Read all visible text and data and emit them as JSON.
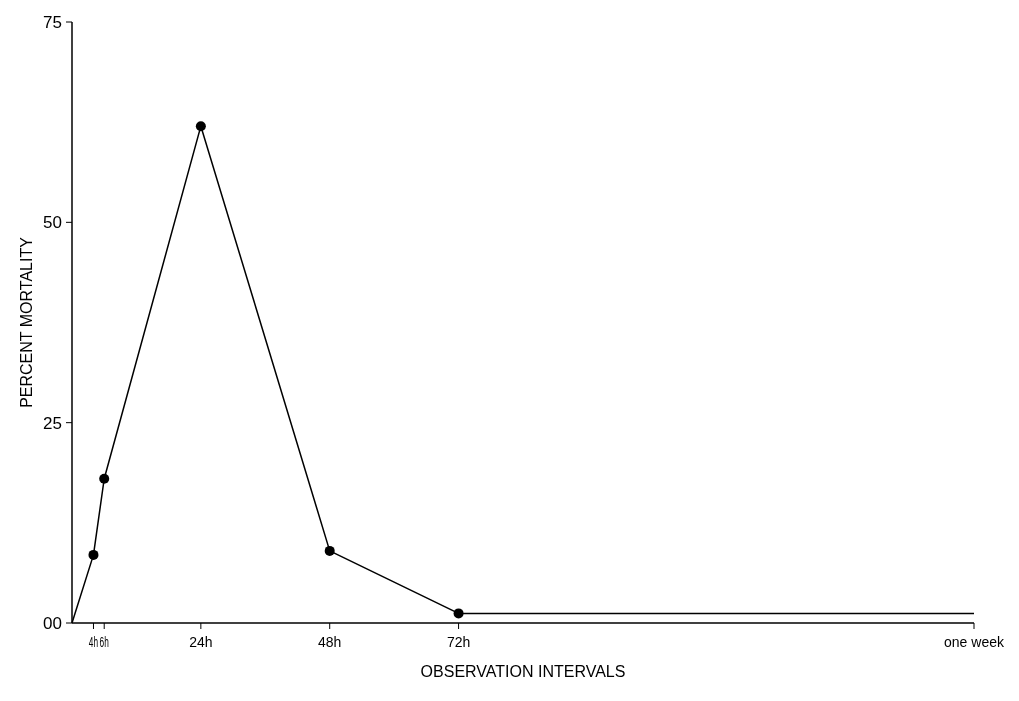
{
  "chart_data": {
    "type": "line",
    "xlabel": "OBSERVATION  INTERVALS",
    "ylabel": "PERCENT  MORTALITY",
    "xlim": [
      0,
      168
    ],
    "xticks": [
      {
        "value": 4,
        "label": "4h"
      },
      {
        "value": 6,
        "label": "6h"
      },
      {
        "value": 24,
        "label": "24h"
      },
      {
        "value": 48,
        "label": "48h"
      },
      {
        "value": 72,
        "label": "72h"
      },
      {
        "value": 168,
        "label": "one week"
      }
    ],
    "ylim": [
      0,
      75
    ],
    "yticks": [
      {
        "value": 0,
        "label": "00"
      },
      25,
      50,
      75
    ],
    "grid": false,
    "line_style": "solid",
    "series": [
      {
        "color": "#000000",
        "x": [
          0,
          4,
          6,
          24,
          48,
          72,
          168
        ],
        "values": [
          0,
          8.5,
          18,
          62,
          9,
          1.2,
          1.2
        ]
      },
      {
        "type": "scatter",
        "color": "#000000",
        "marker": "circle",
        "x": [
          4,
          6,
          24,
          48,
          72
        ],
        "values": [
          8.5,
          18,
          62,
          9,
          1.2
        ]
      }
    ]
  }
}
